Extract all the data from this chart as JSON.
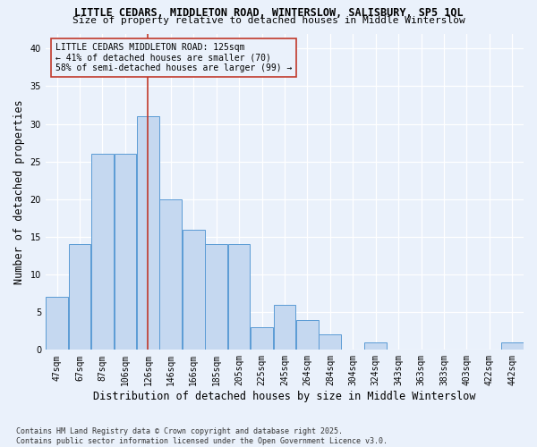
{
  "title_line1": "LITTLE CEDARS, MIDDLETON ROAD, WINTERSLOW, SALISBURY, SP5 1QL",
  "title_line2": "Size of property relative to detached houses in Middle Winterslow",
  "xlabel": "Distribution of detached houses by size in Middle Winterslow",
  "ylabel": "Number of detached properties",
  "categories": [
    "47sqm",
    "67sqm",
    "87sqm",
    "106sqm",
    "126sqm",
    "146sqm",
    "166sqm",
    "185sqm",
    "205sqm",
    "225sqm",
    "245sqm",
    "264sqm",
    "284sqm",
    "304sqm",
    "324sqm",
    "343sqm",
    "363sqm",
    "383sqm",
    "403sqm",
    "422sqm",
    "442sqm"
  ],
  "values": [
    7,
    14,
    26,
    26,
    31,
    20,
    16,
    14,
    14,
    3,
    6,
    4,
    2,
    0,
    1,
    0,
    0,
    0,
    0,
    0,
    1
  ],
  "bar_color": "#c5d8f0",
  "bar_edge_color": "#5b9bd5",
  "ref_line_index": 4,
  "ref_line_color": "#c0392b",
  "ylim": [
    0,
    42
  ],
  "yticks": [
    0,
    5,
    10,
    15,
    20,
    25,
    30,
    35,
    40
  ],
  "annotation_box_text": "LITTLE CEDARS MIDDLETON ROAD: 125sqm\n← 41% of detached houses are smaller (70)\n58% of semi-detached houses are larger (99) →",
  "footnote": "Contains HM Land Registry data © Crown copyright and database right 2025.\nContains public sector information licensed under the Open Government Licence v3.0.",
  "bg_color": "#eaf1fb",
  "grid_color": "#ffffff",
  "title_fontsize": 8.5,
  "subtitle_fontsize": 8.0,
  "axis_label_fontsize": 8.5,
  "tick_fontsize": 7.0,
  "annot_fontsize": 7.0,
  "footnote_fontsize": 6.0
}
